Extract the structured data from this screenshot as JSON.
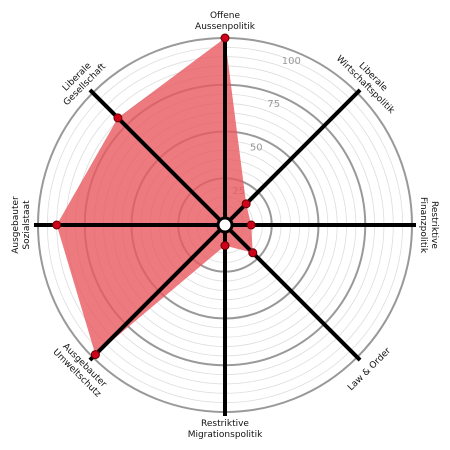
{
  "chart_data": {
    "type": "radar",
    "categories": [
      [
        "Offene",
        "Aussenpolitik"
      ],
      [
        "Liberale",
        "Wirtschaftspolitik"
      ],
      [
        "Restriktive",
        "Finanzpolitik"
      ],
      [
        "Law & Order"
      ],
      [
        "Restriktive",
        "Migrationspolitik"
      ],
      [
        "Ausgebauter",
        "Umweltschutz"
      ],
      [
        "Ausgebauter",
        "Sozialstaat"
      ],
      [
        "Liberale",
        "Gesellschaft"
      ]
    ],
    "values": [
      100,
      16,
      14,
      21,
      11,
      98,
      90,
      81
    ],
    "color": "#e8595f",
    "ylim": [
      0,
      100
    ],
    "yticks": [
      25,
      50,
      75,
      100
    ],
    "grid": true
  }
}
